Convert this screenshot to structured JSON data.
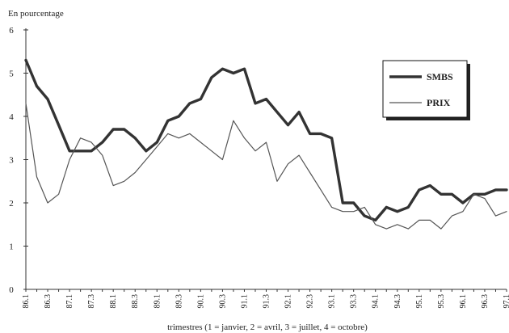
{
  "chart_data": {
    "type": "line",
    "title": "",
    "ylabel": "En pourcentage",
    "xlabel": "trimestres (1 = janvier, 2 = avril, 3 = juillet, 4 = octobre)",
    "ylim": [
      0,
      6
    ],
    "yticks": [
      0,
      1,
      2,
      3,
      4,
      5,
      6
    ],
    "x": [
      "86.1",
      "86.2",
      "86.3",
      "86.4",
      "87.1",
      "87.2",
      "87.3",
      "87.4",
      "88.1",
      "88.2",
      "88.3",
      "88.4",
      "89.1",
      "89.2",
      "89.3",
      "89.4",
      "90.1",
      "90.2",
      "90.3",
      "90.4",
      "91.1",
      "91.2",
      "91.3",
      "91.4",
      "92.1",
      "92.2",
      "92.3",
      "92.4",
      "93.1",
      "93.2",
      "93.3",
      "93.4",
      "94.1",
      "94.2",
      "94.3",
      "94.4",
      "95.1",
      "95.2",
      "95.3",
      "95.4",
      "96.1",
      "96.2",
      "96.3",
      "96.4",
      "97.1"
    ],
    "xtick_labels": [
      "86.1",
      "86.3",
      "87.1",
      "87.3",
      "88.1",
      "88.3",
      "89.1",
      "89.3",
      "90.1",
      "90.3",
      "91.1",
      "91.3",
      "92.1",
      "92.3",
      "93.1",
      "93.3",
      "94.1",
      "94.3",
      "95.1",
      "95.3",
      "96.1",
      "96.3",
      "97.1"
    ],
    "grid": false,
    "legend_position": "top-right",
    "series": [
      {
        "name": "SMBS",
        "color": "#333333",
        "style": "thick",
        "values": [
          5.3,
          4.7,
          4.4,
          3.8,
          3.2,
          3.2,
          3.2,
          3.4,
          3.7,
          3.7,
          3.5,
          3.2,
          3.4,
          3.9,
          4.0,
          4.3,
          4.4,
          4.9,
          5.1,
          5.0,
          5.1,
          4.3,
          4.4,
          4.1,
          3.8,
          4.1,
          3.6,
          3.6,
          3.5,
          2.0,
          2.0,
          1.7,
          1.6,
          1.9,
          1.8,
          1.9,
          2.3,
          2.4,
          2.2,
          2.2,
          2.0,
          2.2,
          2.2,
          2.3,
          2.3
        ]
      },
      {
        "name": "PRIX",
        "color": "#555555",
        "style": "thin",
        "values": [
          4.3,
          2.6,
          2.0,
          2.2,
          3.0,
          3.5,
          3.4,
          3.1,
          2.4,
          2.5,
          2.7,
          3.0,
          3.3,
          3.6,
          3.5,
          3.6,
          3.4,
          3.2,
          3.0,
          3.9,
          3.5,
          3.2,
          3.4,
          2.5,
          2.9,
          3.1,
          2.7,
          2.3,
          1.9,
          1.8,
          1.8,
          1.9,
          1.5,
          1.4,
          1.5,
          1.4,
          1.6,
          1.6,
          1.4,
          1.7,
          1.8,
          2.2,
          2.1,
          1.7,
          1.8
        ]
      }
    ]
  }
}
